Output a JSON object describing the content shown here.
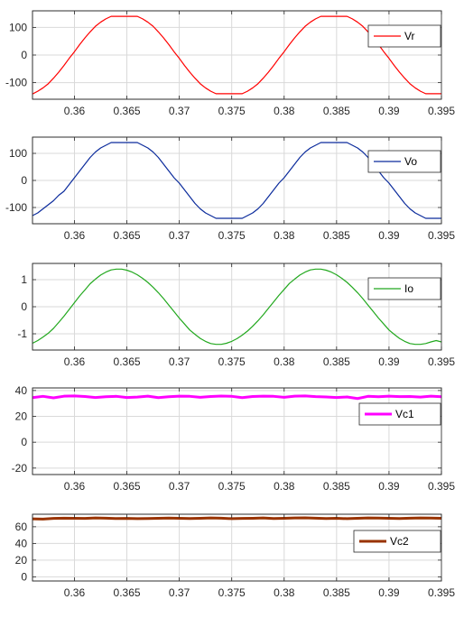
{
  "chart_data": [
    {
      "type": "line",
      "title": "",
      "xlabel": "",
      "ylabel": "",
      "xlim": [
        0.356,
        0.395
      ],
      "ylim": [
        -160,
        160
      ],
      "xticks": [
        0.36,
        0.365,
        0.37,
        0.375,
        0.38,
        0.385,
        0.39,
        0.395
      ],
      "xtick_labels": [
        "0.36",
        "0.365",
        "0.37",
        "0.375",
        "0.38",
        "0.385",
        "0.39",
        "0.395"
      ],
      "yticks": [
        -100,
        0,
        100
      ],
      "ytick_labels": [
        "-100",
        "0",
        "100"
      ],
      "grid": true,
      "legend_position": "top-right",
      "series": [
        {
          "name": "Vr",
          "color": "#ff0000",
          "x": [
            0.356,
            0.3565,
            0.357,
            0.3575,
            0.358,
            0.3585,
            0.359,
            0.3595,
            0.36,
            0.3605,
            0.361,
            0.3615,
            0.362,
            0.3625,
            0.363,
            0.3635,
            0.364,
            0.3645,
            0.365,
            0.3655,
            0.366,
            0.3665,
            0.367,
            0.3675,
            0.368,
            0.3685,
            0.369,
            0.3695,
            0.37,
            0.3705,
            0.371,
            0.3715,
            0.372,
            0.3725,
            0.373,
            0.3735,
            0.374,
            0.3745,
            0.375,
            0.3755,
            0.376,
            0.3765,
            0.377,
            0.3775,
            0.378,
            0.3785,
            0.379,
            0.3795,
            0.38,
            0.3805,
            0.381,
            0.3815,
            0.382,
            0.3825,
            0.383,
            0.3835,
            0.384,
            0.3845,
            0.385,
            0.3855,
            0.386,
            0.3865,
            0.387,
            0.3875,
            0.388,
            0.3885,
            0.389,
            0.3895,
            0.39,
            0.3905,
            0.391,
            0.3915,
            0.392,
            0.3925,
            0.393,
            0.3935,
            0.394,
            0.3945,
            0.395
          ],
          "y": [
            -141,
            -131,
            -119,
            -104,
            -84,
            -62,
            -38,
            -12,
            12,
            38,
            62,
            84,
            104,
            119,
            131,
            140,
            140,
            140,
            140,
            140,
            140,
            131,
            119,
            104,
            84,
            62,
            38,
            12,
            -12,
            -38,
            -62,
            -84,
            -104,
            -119,
            -131,
            -140,
            -140,
            -140,
            -140,
            -140,
            -140,
            -131,
            -119,
            -104,
            -84,
            -62,
            -38,
            -12,
            12,
            38,
            62,
            84,
            104,
            119,
            131,
            140,
            140,
            140,
            140,
            140,
            140,
            131,
            119,
            104,
            84,
            62,
            38,
            12,
            -12,
            -38,
            -62,
            -84,
            -104,
            -119,
            -131,
            -140,
            -140,
            -140,
            -140
          ]
        }
      ]
    },
    {
      "type": "line",
      "title": "",
      "xlabel": "",
      "ylabel": "",
      "xlim": [
        0.356,
        0.395
      ],
      "ylim": [
        -160,
        160
      ],
      "xticks": [
        0.36,
        0.365,
        0.37,
        0.375,
        0.38,
        0.385,
        0.39,
        0.395
      ],
      "xtick_labels": [
        "0.36",
        "0.365",
        "0.37",
        "0.375",
        "0.38",
        "0.385",
        "0.39",
        "0.395"
      ],
      "yticks": [
        -100,
        0,
        100
      ],
      "ytick_labels": [
        "-100",
        "0",
        "100"
      ],
      "grid": true,
      "legend_position": "top-right",
      "series": [
        {
          "name": "Vo",
          "color": "#0b2b9c",
          "x": [
            0.356,
            0.3565,
            0.357,
            0.3575,
            0.358,
            0.3585,
            0.359,
            0.3595,
            0.36,
            0.3605,
            0.361,
            0.3615,
            0.362,
            0.3625,
            0.363,
            0.3635,
            0.364,
            0.3645,
            0.365,
            0.3655,
            0.366,
            0.3665,
            0.367,
            0.3675,
            0.368,
            0.3685,
            0.369,
            0.3695,
            0.37,
            0.3705,
            0.371,
            0.3715,
            0.372,
            0.3725,
            0.373,
            0.3735,
            0.374,
            0.3745,
            0.375,
            0.3755,
            0.376,
            0.3765,
            0.377,
            0.3775,
            0.378,
            0.3785,
            0.379,
            0.3795,
            0.38,
            0.3805,
            0.381,
            0.3815,
            0.382,
            0.3825,
            0.383,
            0.3835,
            0.384,
            0.3845,
            0.385,
            0.3855,
            0.386,
            0.3865,
            0.387,
            0.3875,
            0.388,
            0.3885,
            0.389,
            0.3895,
            0.39,
            0.3905,
            0.391,
            0.3915,
            0.392,
            0.3925,
            0.393,
            0.3935,
            0.394,
            0.3945,
            0.395
          ],
          "y": [
            -130,
            -120,
            -105,
            -90,
            -75,
            -55,
            -40,
            -15,
            10,
            35,
            60,
            85,
            105,
            120,
            130,
            140,
            140,
            140,
            140,
            140,
            140,
            130,
            120,
            105,
            85,
            60,
            35,
            10,
            -10,
            -35,
            -60,
            -85,
            -105,
            -120,
            -130,
            -140,
            -140,
            -140,
            -140,
            -140,
            -140,
            -130,
            -120,
            -105,
            -85,
            -60,
            -35,
            -10,
            10,
            35,
            60,
            85,
            105,
            120,
            130,
            140,
            140,
            140,
            140,
            140,
            140,
            130,
            120,
            105,
            85,
            60,
            35,
            10,
            -10,
            -35,
            -60,
            -85,
            -105,
            -120,
            -130,
            -140,
            -140,
            -140,
            -140
          ]
        }
      ]
    },
    {
      "type": "line",
      "title": "",
      "xlabel": "",
      "ylabel": "",
      "xlim": [
        0.356,
        0.395
      ],
      "ylim": [
        -1.6,
        1.6
      ],
      "xticks": [
        0.36,
        0.365,
        0.37,
        0.375,
        0.38,
        0.385,
        0.39,
        0.395
      ],
      "xtick_labels": [
        "0.36",
        "0.365",
        "0.37",
        "0.375",
        "0.38",
        "0.385",
        "0.39",
        "0.395"
      ],
      "yticks": [
        -1,
        0,
        1
      ],
      "ytick_labels": [
        "-1",
        "0",
        "1"
      ],
      "grid": true,
      "legend_position": "top-right",
      "series": [
        {
          "name": "Io",
          "color": "#22a81e",
          "x": [
            0.356,
            0.3565,
            0.357,
            0.3575,
            0.358,
            0.3585,
            0.359,
            0.3595,
            0.36,
            0.3605,
            0.361,
            0.3615,
            0.362,
            0.3625,
            0.363,
            0.3635,
            0.364,
            0.3645,
            0.365,
            0.3655,
            0.366,
            0.3665,
            0.367,
            0.3675,
            0.368,
            0.3685,
            0.369,
            0.3695,
            0.37,
            0.3705,
            0.371,
            0.3715,
            0.372,
            0.3725,
            0.373,
            0.3735,
            0.374,
            0.3745,
            0.375,
            0.3755,
            0.376,
            0.3765,
            0.377,
            0.3775,
            0.378,
            0.3785,
            0.379,
            0.3795,
            0.38,
            0.3805,
            0.381,
            0.3815,
            0.382,
            0.3825,
            0.383,
            0.3835,
            0.384,
            0.3845,
            0.385,
            0.3855,
            0.386,
            0.3865,
            0.387,
            0.3875,
            0.388,
            0.3885,
            0.389,
            0.3895,
            0.39,
            0.3905,
            0.391,
            0.3915,
            0.392,
            0.3925,
            0.393,
            0.3935,
            0.394,
            0.3945,
            0.395
          ],
          "y": [
            -1.35,
            -1.25,
            -1.12,
            -0.98,
            -0.8,
            -0.58,
            -0.35,
            -0.1,
            0.15,
            0.4,
            0.62,
            0.85,
            1.02,
            1.17,
            1.28,
            1.36,
            1.39,
            1.39,
            1.35,
            1.28,
            1.18,
            1.05,
            0.9,
            0.72,
            0.52,
            0.3,
            0.06,
            -0.18,
            -0.42,
            -0.64,
            -0.86,
            -1.02,
            -1.17,
            -1.28,
            -1.36,
            -1.39,
            -1.39,
            -1.35,
            -1.28,
            -1.18,
            -1.05,
            -0.9,
            -0.72,
            -0.52,
            -0.3,
            -0.06,
            0.18,
            0.42,
            0.64,
            0.86,
            1.02,
            1.17,
            1.28,
            1.36,
            1.39,
            1.39,
            1.35,
            1.28,
            1.18,
            1.05,
            0.9,
            0.72,
            0.52,
            0.3,
            0.06,
            -0.18,
            -0.42,
            -0.64,
            -0.86,
            -1.02,
            -1.17,
            -1.28,
            -1.36,
            -1.39,
            -1.39,
            -1.36,
            -1.3,
            -1.25,
            -1.3
          ]
        }
      ]
    },
    {
      "type": "line",
      "title": "",
      "xlabel": "",
      "ylabel": "",
      "xlim": [
        0.356,
        0.395
      ],
      "ylim": [
        -25,
        42
      ],
      "xticks": [
        0.36,
        0.365,
        0.37,
        0.375,
        0.38,
        0.385,
        0.39,
        0.395
      ],
      "xtick_labels": [
        "0.36",
        "0.365",
        "0.37",
        "0.375",
        "0.38",
        "0.385",
        "0.39",
        "0.395"
      ],
      "yticks": [
        -20,
        0,
        20,
        40
      ],
      "ytick_labels": [
        "-20",
        "0",
        "20",
        "40"
      ],
      "grid": true,
      "legend_position": "top-right",
      "series": [
        {
          "name": "Vc1",
          "color": "#ff00ff",
          "x": [
            0.356,
            0.357,
            0.358,
            0.359,
            0.36,
            0.361,
            0.362,
            0.363,
            0.364,
            0.365,
            0.366,
            0.367,
            0.368,
            0.369,
            0.37,
            0.371,
            0.372,
            0.373,
            0.374,
            0.375,
            0.376,
            0.377,
            0.378,
            0.379,
            0.38,
            0.381,
            0.382,
            0.383,
            0.384,
            0.385,
            0.386,
            0.387,
            0.388,
            0.389,
            0.39,
            0.391,
            0.392,
            0.393,
            0.394,
            0.395
          ],
          "y": [
            34.5,
            35.5,
            34.3,
            35.6,
            35.8,
            35.4,
            34.6,
            35.2,
            35.5,
            34.6,
            34.9,
            35.6,
            34.5,
            35.2,
            35.6,
            35.5,
            34.8,
            35.4,
            35.7,
            35.5,
            34.5,
            35.4,
            35.6,
            35.5,
            34.8,
            35.6,
            35.8,
            35.3,
            35.0,
            34.6,
            35.0,
            33.8,
            35.5,
            35.2,
            35.6,
            35.3,
            35.4,
            34.9,
            35.6,
            35.2
          ]
        }
      ]
    },
    {
      "type": "line",
      "title": "",
      "xlabel": "",
      "ylabel": "",
      "xlim": [
        0.356,
        0.395
      ],
      "ylim": [
        -5,
        75
      ],
      "xticks": [
        0.36,
        0.365,
        0.37,
        0.375,
        0.38,
        0.385,
        0.39,
        0.395
      ],
      "xtick_labels": [
        "0.36",
        "0.365",
        "0.37",
        "0.375",
        "0.38",
        "0.385",
        "0.39",
        "0.395"
      ],
      "yticks": [
        0,
        20,
        40,
        60
      ],
      "ytick_labels": [
        "0",
        "20",
        "40",
        "60"
      ],
      "grid": true,
      "legend_position": "top-right",
      "series": [
        {
          "name": "Vc2",
          "color": "#993300",
          "x": [
            0.356,
            0.357,
            0.358,
            0.359,
            0.36,
            0.361,
            0.362,
            0.363,
            0.364,
            0.365,
            0.366,
            0.367,
            0.368,
            0.369,
            0.37,
            0.371,
            0.372,
            0.373,
            0.374,
            0.375,
            0.376,
            0.377,
            0.378,
            0.379,
            0.38,
            0.381,
            0.382,
            0.383,
            0.384,
            0.385,
            0.386,
            0.387,
            0.388,
            0.389,
            0.39,
            0.391,
            0.392,
            0.393,
            0.394,
            0.395
          ],
          "y": [
            69.5,
            69.2,
            70.0,
            70.3,
            70.2,
            70.0,
            70.5,
            70.3,
            69.8,
            70.0,
            69.7,
            69.8,
            70.1,
            70.4,
            70.2,
            69.8,
            70.1,
            70.5,
            70.3,
            69.7,
            70.0,
            70.2,
            70.5,
            69.9,
            70.2,
            70.6,
            70.7,
            70.3,
            69.9,
            70.1,
            69.7,
            70.2,
            70.6,
            70.4,
            70.2,
            69.8,
            70.3,
            70.6,
            70.4,
            70.1
          ]
        }
      ]
    }
  ]
}
